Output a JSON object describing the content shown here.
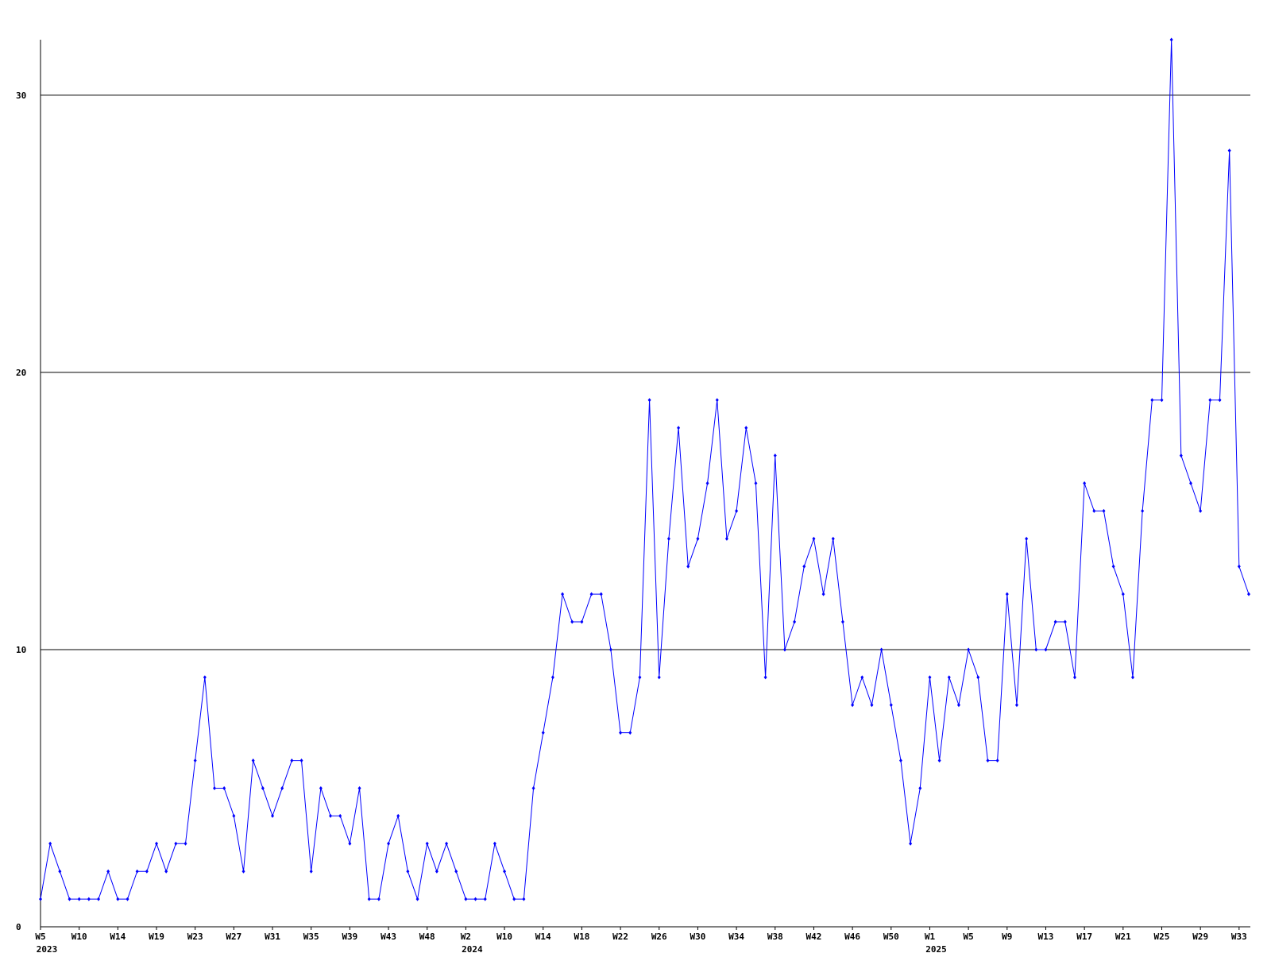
{
  "chart_data": {
    "type": "line",
    "categories": [
      "W5",
      null,
      null,
      null,
      "W10",
      null,
      null,
      null,
      "W14",
      null,
      null,
      null,
      "W19",
      null,
      null,
      null,
      "W23",
      null,
      null,
      null,
      "W27",
      null,
      null,
      null,
      "W31",
      null,
      null,
      null,
      "W35",
      null,
      null,
      null,
      "W39",
      null,
      null,
      null,
      "W43",
      null,
      null,
      null,
      "W48",
      null,
      null,
      null,
      "W2",
      null,
      null,
      null,
      "W10",
      null,
      null,
      null,
      "W14",
      null,
      null,
      null,
      "W18",
      null,
      null,
      null,
      "W22",
      null,
      null,
      null,
      "W26",
      null,
      null,
      null,
      "W30",
      null,
      null,
      null,
      "W34",
      null,
      null,
      null,
      "W38",
      null,
      null,
      null,
      "W42",
      null,
      null,
      null,
      "W46",
      null,
      null,
      null,
      "W50",
      null,
      null,
      null,
      "W1",
      null,
      null,
      null,
      "W5",
      null,
      null,
      null,
      "W9",
      null,
      null,
      null,
      "W13",
      null,
      null,
      null,
      "W17",
      null,
      null,
      null,
      "W21",
      null,
      null,
      null,
      "W25",
      null,
      null,
      null,
      "W29",
      null,
      null,
      null,
      "W33",
      null
    ],
    "category_years": [
      "2023",
      null,
      null,
      null,
      null,
      null,
      null,
      null,
      null,
      null,
      null,
      null,
      null,
      null,
      null,
      null,
      null,
      null,
      null,
      null,
      null,
      null,
      null,
      null,
      null,
      null,
      null,
      null,
      null,
      null,
      null,
      null,
      null,
      null,
      null,
      null,
      null,
      null,
      null,
      null,
      null,
      null,
      null,
      null,
      "2024",
      null,
      null,
      null,
      null,
      null,
      null,
      null,
      null,
      null,
      null,
      null,
      null,
      null,
      null,
      null,
      null,
      null,
      null,
      null,
      null,
      null,
      null,
      null,
      null,
      null,
      null,
      null,
      null,
      null,
      null,
      null,
      null,
      null,
      null,
      null,
      null,
      null,
      null,
      null,
      null,
      null,
      null,
      null,
      null,
      null,
      null,
      null,
      "2025",
      null,
      null,
      null,
      null,
      null,
      null,
      null,
      null,
      null,
      null,
      null,
      null,
      null,
      null,
      null,
      null,
      null,
      null,
      null,
      null,
      null,
      null,
      null,
      null,
      null,
      null,
      null,
      null,
      null,
      null,
      null,
      null,
      null
    ],
    "series": [
      {
        "color": "#0000ff",
        "values": [
          1,
          3,
          2,
          1,
          1,
          1,
          1,
          2,
          1,
          1,
          2,
          2,
          3,
          2,
          3,
          3,
          6,
          9,
          5,
          5,
          4,
          2,
          6,
          5,
          4,
          5,
          6,
          6,
          2,
          5,
          4,
          4,
          3,
          5,
          1,
          1,
          3,
          4,
          2,
          1,
          3,
          2,
          3,
          2,
          1,
          1,
          1,
          3,
          2,
          1,
          1,
          5,
          7,
          9,
          12,
          11,
          11,
          12,
          12,
          10,
          7,
          7,
          9,
          19,
          9,
          14,
          18,
          13,
          14,
          16,
          19,
          14,
          15,
          18,
          16,
          9,
          17,
          10,
          11,
          13,
          14,
          12,
          14,
          11,
          8,
          9,
          8,
          10,
          8,
          6,
          3,
          5,
          9,
          6,
          9,
          8,
          10,
          9,
          6,
          6,
          12,
          8,
          14,
          10,
          10,
          11,
          11,
          9,
          16,
          15,
          15,
          13,
          12,
          9,
          15,
          19,
          19,
          32,
          17,
          16,
          15,
          19,
          19,
          28,
          13,
          12
        ]
      }
    ],
    "ylim": [
      0,
      32
    ],
    "yticks": [
      0,
      10,
      20,
      30
    ],
    "grid": true
  }
}
